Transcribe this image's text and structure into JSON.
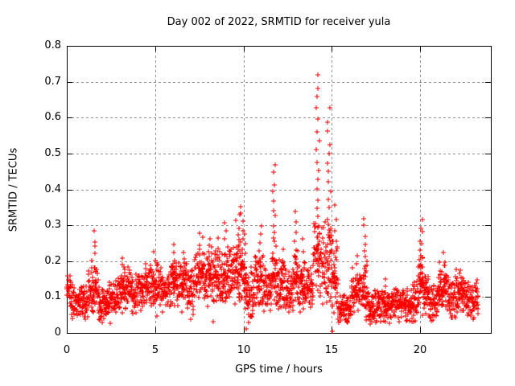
{
  "chart_data": {
    "type": "scatter",
    "title": "Day 002 of 2022, SRMTID for receiver yula",
    "xlabel": "GPS time / hours",
    "ylabel": "SRMTID / TECUs",
    "xlim": [
      0,
      24
    ],
    "ylim": [
      0,
      0.8
    ],
    "xticks": [
      0,
      5,
      10,
      15,
      20
    ],
    "xtick_labels": [
      "0",
      "5",
      "10",
      "15",
      "20"
    ],
    "yticks": [
      0,
      0.1,
      0.2,
      0.3,
      0.4,
      0.5,
      0.6,
      0.7,
      0.8
    ],
    "ytick_labels": [
      "0",
      "0.1",
      "0.2",
      "0.3",
      "0.4",
      "0.5",
      "0.6",
      "0.7",
      "0.8"
    ],
    "grid": true,
    "legend": "none",
    "marker": "plus",
    "marker_color": "#ff0000",
    "axis_color": "#000000",
    "grid_color": "#909090",
    "series_name": "SRMTID",
    "sampling": {
      "t_start": 0.0,
      "t_end": 23.3,
      "step_hours": 0.01,
      "seed": 987654321
    },
    "baseline_segments": {
      "columns": [
        "t_start",
        "t_end",
        "mean",
        "half_spread"
      ],
      "rows": [
        [
          0.0,
          0.2,
          0.13,
          0.05
        ],
        [
          0.2,
          1.2,
          0.085,
          0.04
        ],
        [
          1.2,
          1.8,
          0.12,
          0.06
        ],
        [
          1.8,
          2.4,
          0.08,
          0.04
        ],
        [
          2.4,
          3.0,
          0.1,
          0.045
        ],
        [
          3.0,
          3.6,
          0.125,
          0.05
        ],
        [
          3.6,
          4.4,
          0.11,
          0.045
        ],
        [
          4.4,
          5.4,
          0.13,
          0.05
        ],
        [
          5.4,
          5.9,
          0.11,
          0.05
        ],
        [
          5.9,
          6.8,
          0.14,
          0.055
        ],
        [
          6.8,
          7.2,
          0.115,
          0.065
        ],
        [
          7.2,
          8.4,
          0.155,
          0.065
        ],
        [
          8.4,
          9.3,
          0.155,
          0.065
        ],
        [
          9.3,
          10.1,
          0.165,
          0.075
        ],
        [
          10.1,
          10.6,
          0.1,
          0.055
        ],
        [
          10.6,
          11.2,
          0.145,
          0.065
        ],
        [
          11.2,
          11.6,
          0.12,
          0.055
        ],
        [
          11.6,
          11.9,
          0.17,
          0.08
        ],
        [
          11.9,
          12.4,
          0.135,
          0.06
        ],
        [
          12.4,
          12.8,
          0.11,
          0.05
        ],
        [
          12.8,
          13.1,
          0.145,
          0.065
        ],
        [
          13.1,
          13.9,
          0.13,
          0.055
        ],
        [
          13.9,
          14.45,
          0.21,
          0.1
        ],
        [
          14.45,
          15.05,
          0.19,
          0.1
        ],
        [
          15.05,
          15.35,
          0.14,
          0.08
        ],
        [
          15.35,
          16.1,
          0.07,
          0.035
        ],
        [
          16.1,
          16.65,
          0.115,
          0.055
        ],
        [
          16.65,
          17.05,
          0.12,
          0.07
        ],
        [
          17.05,
          18.3,
          0.075,
          0.04
        ],
        [
          18.3,
          19.55,
          0.08,
          0.04
        ],
        [
          19.55,
          19.9,
          0.09,
          0.05
        ],
        [
          19.9,
          20.2,
          0.135,
          0.065
        ],
        [
          20.2,
          20.55,
          0.115,
          0.05
        ],
        [
          20.55,
          21.0,
          0.08,
          0.04
        ],
        [
          21.0,
          21.5,
          0.125,
          0.055
        ],
        [
          21.5,
          22.0,
          0.1,
          0.05
        ],
        [
          22.0,
          22.6,
          0.115,
          0.05
        ],
        [
          22.6,
          23.3,
          0.095,
          0.045
        ]
      ]
    },
    "spikes": {
      "columns": [
        "t_center",
        "peak_value",
        "t_width",
        "n_points"
      ],
      "rows": [
        [
          1.5,
          0.285,
          0.25,
          10
        ],
        [
          3.2,
          0.21,
          0.15,
          6
        ],
        [
          5.0,
          0.22,
          0.3,
          8
        ],
        [
          6.15,
          0.245,
          0.2,
          8
        ],
        [
          6.6,
          0.23,
          0.2,
          6
        ],
        [
          7.6,
          0.28,
          0.25,
          10
        ],
        [
          8.05,
          0.27,
          0.2,
          8
        ],
        [
          8.5,
          0.26,
          0.15,
          6
        ],
        [
          9.0,
          0.3,
          0.2,
          10
        ],
        [
          9.65,
          0.33,
          0.25,
          12
        ],
        [
          9.9,
          0.355,
          0.2,
          12
        ],
        [
          10.1,
          0.28,
          0.1,
          8
        ],
        [
          10.95,
          0.3,
          0.25,
          10
        ],
        [
          11.75,
          0.47,
          0.18,
          16
        ],
        [
          12.2,
          0.23,
          0.15,
          6
        ],
        [
          12.95,
          0.34,
          0.15,
          10
        ],
        [
          13.4,
          0.26,
          0.15,
          6
        ],
        [
          14.2,
          0.72,
          0.22,
          22
        ],
        [
          14.85,
          0.62,
          0.25,
          20
        ],
        [
          15.2,
          0.35,
          0.12,
          10
        ],
        [
          16.4,
          0.22,
          0.15,
          6
        ],
        [
          16.85,
          0.32,
          0.15,
          12
        ],
        [
          18.0,
          0.15,
          0.2,
          5
        ],
        [
          20.05,
          0.31,
          0.18,
          14
        ],
        [
          21.3,
          0.22,
          0.3,
          8
        ],
        [
          22.3,
          0.175,
          0.25,
          6
        ]
      ]
    },
    "extra_points": [
      [
        15.02,
        0.004
      ],
      [
        10.15,
        0.012
      ],
      [
        10.3,
        0.03
      ]
    ]
  }
}
